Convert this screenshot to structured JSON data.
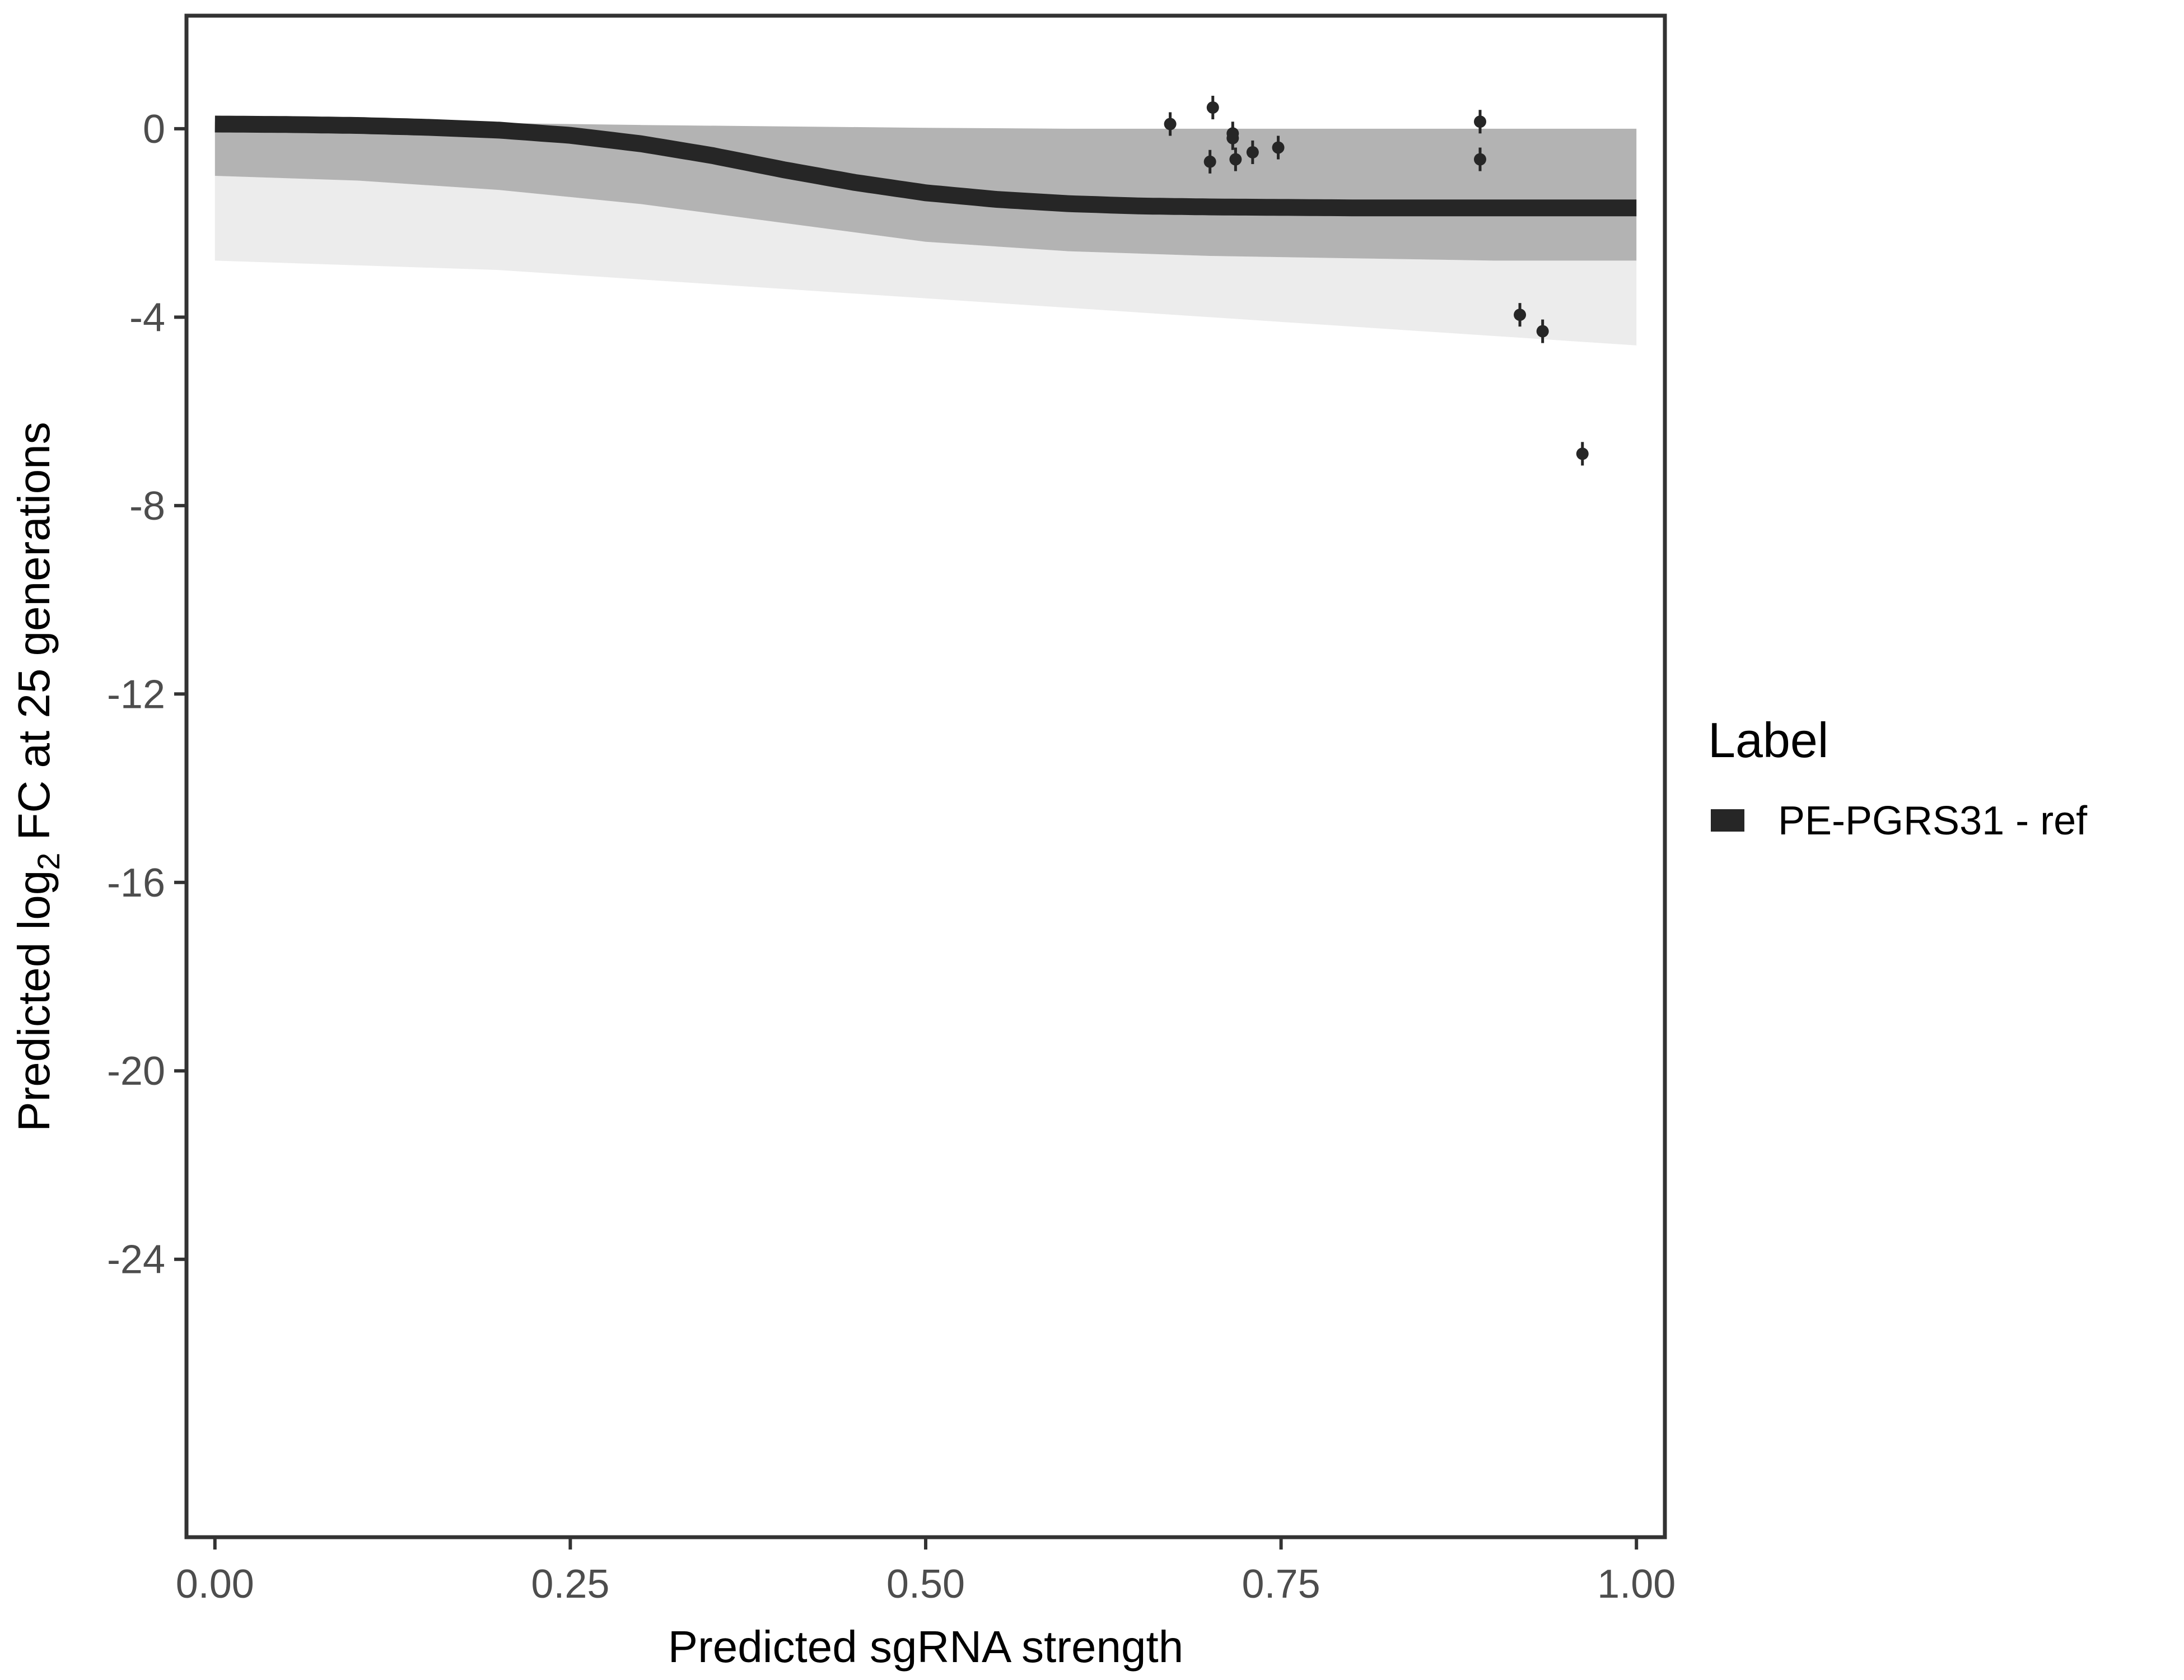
{
  "chart_data": {
    "type": "line",
    "title": "",
    "xlabel": "Predicted sgRNA strength",
    "ylabel_prefix": "Predicted  log",
    "ylabel_subscript": "2",
    "ylabel_suffix": " FC at 25 generations",
    "xlim": [
      -0.02,
      1.02
    ],
    "ylim": [
      -29.9,
      2.4
    ],
    "x_ticks": [
      0.0,
      0.25,
      0.5,
      0.75,
      1.0
    ],
    "x_tick_labels": [
      "0.00",
      "0.25",
      "0.50",
      "0.75",
      "1.00"
    ],
    "y_ticks": [
      0,
      -4,
      -8,
      -12,
      -16,
      -20,
      -24
    ],
    "y_tick_labels": [
      "0",
      "-4",
      "-8",
      "-12",
      "-16",
      "-20",
      "-24"
    ],
    "grid": false,
    "legend": {
      "title": "Label",
      "position": "right",
      "entries": [
        {
          "label": "PE-PGRS31 - ref",
          "color": "#262626"
        }
      ]
    },
    "series": [
      {
        "name": "PE-PGRS31 - ref",
        "kind": "median-fit",
        "color": "#262626",
        "x": [
          0.0,
          0.05,
          0.1,
          0.15,
          0.2,
          0.25,
          0.3,
          0.35,
          0.4,
          0.45,
          0.5,
          0.55,
          0.6,
          0.65,
          0.7,
          0.75,
          0.8,
          0.85,
          0.9,
          0.95,
          1.0
        ],
        "y": [
          0.1,
          0.09,
          0.07,
          0.03,
          -0.03,
          -0.14,
          -0.32,
          -0.57,
          -0.87,
          -1.14,
          -1.36,
          -1.5,
          -1.59,
          -1.64,
          -1.66,
          -1.67,
          -1.68,
          -1.68,
          -1.68,
          -1.68,
          -1.68
        ]
      }
    ],
    "posterior_band": {
      "color": "#a6a6a6",
      "x": [
        0.0,
        0.1,
        0.2,
        0.3,
        0.4,
        0.5,
        0.6,
        0.7,
        0.8,
        0.9,
        1.0
      ],
      "upper": [
        0.15,
        0.15,
        0.12,
        0.08,
        0.05,
        0.02,
        0.0,
        0.0,
        0.0,
        0.0,
        0.0
      ],
      "lower": [
        -1.0,
        -1.1,
        -1.3,
        -1.6,
        -2.0,
        -2.4,
        -2.6,
        -2.7,
        -2.75,
        -2.8,
        -2.8
      ],
      "faint_lower": [
        -2.8,
        -2.9,
        -3.0,
        -3.2,
        -3.4,
        -3.6,
        -3.8,
        -4.0,
        -4.2,
        -4.4,
        -4.6
      ]
    },
    "points": {
      "x": [
        0.672,
        0.702,
        0.7,
        0.716,
        0.716,
        0.718,
        0.73,
        0.748,
        0.89,
        0.89,
        0.918,
        0.934,
        0.962
      ],
      "y": [
        0.1,
        0.45,
        -0.7,
        -0.2,
        -0.1,
        -0.65,
        -0.5,
        -0.4,
        0.15,
        -0.65,
        -3.95,
        -4.3,
        -6.9
      ],
      "err": [
        0.25,
        0.25,
        0.25,
        0.25,
        0.25,
        0.25,
        0.25,
        0.25,
        0.25,
        0.25,
        0.25,
        0.25,
        0.25
      ],
      "color": "#262626"
    }
  }
}
